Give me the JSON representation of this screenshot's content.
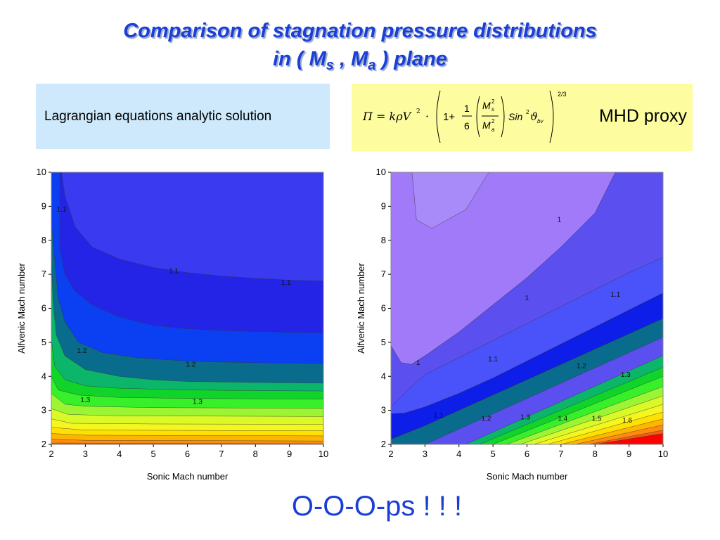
{
  "title": {
    "line1": "Comparison of stagnation pressure distributions",
    "line2_pre": "in ( M",
    "line2_sub1": "s",
    "line2_mid": " , M",
    "line2_sub2": "a",
    "line2_post": " ) plane"
  },
  "left_box": {
    "label": "Lagrangian equations analytic solution",
    "color": "#cde9fb"
  },
  "right_box": {
    "label": "MHD proxy",
    "color": "#fdfda0",
    "formula": {
      "lhs": "Π = kρV",
      "exp2": "2",
      "dot": "·",
      "one_plus": "1+",
      "frac_num": "1",
      "frac_den": "6",
      "ms": "M",
      "ms_sub": "s",
      "ms_sup": "2",
      "ma": "M",
      "ma_sub": "a",
      "ma_sup": "2",
      "sin": "Sin",
      "sin_sup": "2",
      "theta": "ϑ",
      "theta_sub": "bv",
      "outer_exp": "2/3"
    }
  },
  "chart_data": [
    {
      "type": "contour",
      "xlabel": "Sonic Mach number",
      "ylabel": "Alfvenic Mach number",
      "xlim": [
        2,
        10
      ],
      "ylim": [
        2,
        10
      ],
      "xticks": [
        "2",
        "3",
        "4",
        "5",
        "6",
        "7",
        "8",
        "9",
        "10"
      ],
      "yticks": [
        "2",
        "3",
        "4",
        "5",
        "6",
        "7",
        "8",
        "9",
        "10"
      ],
      "levels": [
        1.1,
        1.2,
        1.3
      ],
      "contour_labels": [
        {
          "text": "1.1",
          "x": 2.3,
          "y": 8.9
        },
        {
          "text": "1.1",
          "x": 5.6,
          "y": 7.1
        },
        {
          "text": "1.1",
          "x": 8.9,
          "y": 6.75
        },
        {
          "text": "1.2",
          "x": 2.9,
          "y": 4.75
        },
        {
          "text": "1.2",
          "x": 6.1,
          "y": 4.35
        },
        {
          "text": "1.3",
          "x": 3.0,
          "y": 3.3
        },
        {
          "text": "1.3",
          "x": 6.3,
          "y": 3.25
        }
      ],
      "bands": [
        {
          "color": "#2424e6",
          "boundary": [
            [
              2.3,
              10
            ],
            [
              2.4,
              9.3
            ],
            [
              2.7,
              8.4
            ],
            [
              3.2,
              7.8
            ],
            [
              4,
              7.45
            ],
            [
              5,
              7.2
            ],
            [
              6,
              7.05
            ],
            [
              7,
              6.95
            ],
            [
              8,
              6.88
            ],
            [
              9,
              6.83
            ],
            [
              10,
              6.8
            ]
          ]
        },
        {
          "color": "#0b3ff2",
          "boundary": [
            [
              2.25,
              10
            ],
            [
              2.25,
              7.8
            ],
            [
              2.4,
              7
            ],
            [
              2.7,
              6.5
            ],
            [
              3.2,
              6.1
            ],
            [
              4,
              5.75
            ],
            [
              5,
              5.5
            ],
            [
              6,
              5.4
            ],
            [
              7,
              5.35
            ],
            [
              8,
              5.32
            ],
            [
              9,
              5.3
            ],
            [
              10,
              5.28
            ]
          ]
        },
        {
          "color": "#0a6c8c",
          "boundary": [
            [
              2,
              10
            ],
            [
              2,
              8.6
            ],
            [
              2.1,
              7.4
            ],
            [
              2.2,
              6.3
            ],
            [
              2.4,
              5.6
            ],
            [
              2.8,
              5.0
            ],
            [
              3.5,
              4.7
            ],
            [
              4.5,
              4.55
            ],
            [
              6,
              4.45
            ],
            [
              7,
              4.42
            ],
            [
              8,
              4.4
            ],
            [
              10,
              4.38
            ]
          ]
        },
        {
          "color": "#0bb56a",
          "boundary": [
            [
              2,
              7.5
            ],
            [
              2.05,
              6.2
            ],
            [
              2.15,
              5.2
            ],
            [
              2.4,
              4.6
            ],
            [
              3,
              4.2
            ],
            [
              4,
              4.0
            ],
            [
              5,
              3.9
            ],
            [
              6,
              3.85
            ],
            [
              8,
              3.82
            ],
            [
              10,
              3.8
            ]
          ]
        },
        {
          "color": "#10d42a",
          "boundary": [
            [
              2,
              5.1
            ],
            [
              2.1,
              4.3
            ],
            [
              2.4,
              3.9
            ],
            [
              3,
              3.72
            ],
            [
              4,
              3.65
            ],
            [
              6,
              3.6
            ],
            [
              8,
              3.58
            ],
            [
              10,
              3.57
            ]
          ]
        },
        {
          "color": "#38f02a",
          "boundary": [
            [
              2,
              4.0
            ],
            [
              2.2,
              3.6
            ],
            [
              2.8,
              3.45
            ],
            [
              4,
              3.38
            ],
            [
              6,
              3.35
            ],
            [
              10,
              3.33
            ]
          ]
        },
        {
          "color": "#9cf532",
          "boundary": [
            [
              2,
              3.5
            ],
            [
              2.4,
              3.18
            ],
            [
              3,
              3.12
            ],
            [
              5,
              3.08
            ],
            [
              10,
              3.06
            ]
          ]
        },
        {
          "color": "#dafa28",
          "boundary": [
            [
              2,
              3.05
            ],
            [
              2.5,
              2.88
            ],
            [
              4,
              2.84
            ],
            [
              10,
              2.82
            ]
          ]
        },
        {
          "color": "#f5f520",
          "boundary": [
            [
              2,
              2.75
            ],
            [
              2.6,
              2.62
            ],
            [
              5,
              2.6
            ],
            [
              10,
              2.59
            ]
          ]
        },
        {
          "color": "#ffe000",
          "boundary": [
            [
              2,
              2.5
            ],
            [
              3,
              2.42
            ],
            [
              10,
              2.4
            ]
          ]
        },
        {
          "color": "#ffb400",
          "boundary": [
            [
              2,
              2.32
            ],
            [
              3,
              2.27
            ],
            [
              10,
              2.25
            ]
          ]
        },
        {
          "color": "#ff8a10",
          "boundary": [
            [
              2,
              2.15
            ],
            [
              3,
              2.12
            ],
            [
              10,
              2.1
            ]
          ]
        },
        {
          "color": "#f06010",
          "boundary": [
            [
              2,
              2.04
            ],
            [
              10,
              2.02
            ]
          ]
        }
      ],
      "base_color": "#3a3af0"
    },
    {
      "type": "contour",
      "xlabel": "Sonic Mach number",
      "ylabel": "Alfvenic Mach number",
      "xlim": [
        2,
        10
      ],
      "ylim": [
        2,
        10
      ],
      "xticks": [
        "2",
        "3",
        "4",
        "5",
        "6",
        "7",
        "8",
        "9",
        "10"
      ],
      "yticks": [
        "2",
        "3",
        "4",
        "5",
        "6",
        "7",
        "8",
        "9",
        "10"
      ],
      "levels": [
        1,
        1.1,
        1.2,
        1.3,
        1.4,
        1.5,
        1.6
      ],
      "contour_labels": [
        {
          "text": "1",
          "x": 6.95,
          "y": 8.6
        },
        {
          "text": "1",
          "x": 6.0,
          "y": 6.3
        },
        {
          "text": "1",
          "x": 2.8,
          "y": 4.4
        },
        {
          "text": "1.1",
          "x": 8.6,
          "y": 6.4
        },
        {
          "text": "1.1",
          "x": 5.0,
          "y": 4.5
        },
        {
          "text": "1.1",
          "x": 3.4,
          "y": 2.85
        },
        {
          "text": "1.2",
          "x": 7.6,
          "y": 4.3
        },
        {
          "text": "1.2",
          "x": 4.8,
          "y": 2.75
        },
        {
          "text": "1.3",
          "x": 8.9,
          "y": 4.05
        },
        {
          "text": "1.3",
          "x": 5.95,
          "y": 2.8
        },
        {
          "text": "1.4",
          "x": 7.05,
          "y": 2.75
        },
        {
          "text": "1.5",
          "x": 8.05,
          "y": 2.75
        },
        {
          "text": "1.6",
          "x": 8.95,
          "y": 2.7
        }
      ],
      "bands": [
        {
          "color": "#5b4ff0",
          "boundary": [
            [
              2,
              4.9
            ],
            [
              2.3,
              4.4
            ],
            [
              2.6,
              4.35
            ],
            [
              3,
              4.6
            ],
            [
              4,
              5.3
            ],
            [
              5,
              6.1
            ],
            [
              6,
              6.9
            ],
            [
              7,
              7.8
            ],
            [
              8,
              8.8
            ],
            [
              8.6,
              10
            ]
          ]
        },
        {
          "color": "#4a52fa",
          "boundary": [
            [
              2,
              2.9
            ],
            [
              2.4,
              2.92
            ],
            [
              3,
              3.1
            ],
            [
              4,
              3.5
            ],
            [
              5,
              3.95
            ],
            [
              6,
              4.45
            ],
            [
              7,
              4.95
            ],
            [
              8,
              5.45
            ],
            [
              9,
              5.95
            ],
            [
              10,
              6.45
            ],
            [
              10,
              7.5
            ],
            [
              9,
              7.05
            ],
            [
              8,
              6.55
            ],
            [
              7,
              6.05
            ],
            [
              6,
              5.55
            ],
            [
              5,
              5.05
            ],
            [
              4,
              4.55
            ],
            [
              3,
              4.05
            ],
            [
              2.5,
              3.6
            ],
            [
              2,
              3.1
            ]
          ],
          "closed": true
        },
        {
          "color": "#0d1ee8",
          "boundary": [
            [
              2,
              2.15
            ],
            [
              3,
              2.55
            ],
            [
              4,
              3.0
            ],
            [
              5,
              3.45
            ],
            [
              6,
              3.9
            ],
            [
              7,
              4.35
            ],
            [
              8,
              4.8
            ],
            [
              9,
              5.25
            ],
            [
              10,
              5.7
            ],
            [
              10,
              6.45
            ],
            [
              9,
              5.95
            ],
            [
              8,
              5.45
            ],
            [
              7,
              4.95
            ],
            [
              6,
              4.45
            ],
            [
              5,
              3.95
            ],
            [
              4,
              3.5
            ],
            [
              3,
              3.1
            ],
            [
              2.4,
              2.92
            ],
            [
              2,
              2.9
            ]
          ],
          "closed": true
        },
        {
          "color": "#0a6c8c",
          "boundary": [
            [
              3,
              2.0
            ],
            [
              4,
              2.45
            ],
            [
              5,
              2.9
            ],
            [
              6,
              3.35
            ],
            [
              7,
              3.8
            ],
            [
              8,
              4.25
            ],
            [
              9,
              4.7
            ],
            [
              10,
              5.15
            ],
            [
              10,
              5.7
            ],
            [
              9,
              5.25
            ],
            [
              8,
              4.8
            ],
            [
              7,
              4.35
            ],
            [
              6,
              3.9
            ],
            [
              5,
              3.45
            ],
            [
              4,
              3.0
            ],
            [
              3,
              2.55
            ],
            [
              2,
              2.15
            ],
            [
              2,
              2.0
            ]
          ],
          "closed": true
        }
      ],
      "stripes": [
        {
          "color": "#0bb56a",
          "x0": 4.2,
          "slope": 0.45,
          "x1": 4.0
        },
        {
          "color": "#10d42a",
          "x0": 4.6,
          "slope": 0.42,
          "x1": 4.4
        },
        {
          "color": "#38f02a",
          "x0": 5.0,
          "slope": 0.4,
          "x1": 4.8
        },
        {
          "color": "#9cf532",
          "x0": 5.4,
          "slope": 0.37,
          "x1": 5.2
        },
        {
          "color": "#dafa28",
          "x0": 5.8,
          "slope": 0.34,
          "x1": 5.6
        },
        {
          "color": "#f5f520",
          "x0": 6.2,
          "slope": 0.31,
          "x1": 6.0
        },
        {
          "color": "#ffe000",
          "x0": 6.6,
          "slope": 0.28,
          "x1": 6.4
        },
        {
          "color": "#ffb400",
          "x0": 7.0,
          "slope": 0.25,
          "x1": 6.8
        },
        {
          "color": "#ff8a10",
          "x0": 7.4,
          "slope": 0.22,
          "x1": 7.2
        },
        {
          "color": "#f06010",
          "x0": 7.8,
          "slope": 0.19,
          "x1": 7.6
        },
        {
          "color": "#ff0000",
          "x0": 8.0,
          "slope": 0.16,
          "x1": 7.9
        }
      ],
      "base_color": "#9d6cf7",
      "top_region_color": "#a07af8"
    }
  ],
  "bottom_text": "O-O-O-ps ! ! !"
}
